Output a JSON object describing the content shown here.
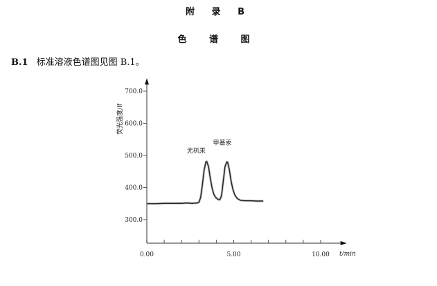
{
  "appendix_title": "附 录 B",
  "section_title": "色 谱 图",
  "paragraph": {
    "number": "B.1",
    "text": "标准溶液色谱图见图 B.1。"
  },
  "chart_data": {
    "type": "line",
    "xlabel": "t/min",
    "ylabel": "荧光强度/lf",
    "xlim": [
      0,
      11.5
    ],
    "ylim": [
      227,
      740
    ],
    "x_ticks": [
      0,
      1,
      2,
      3,
      4,
      5,
      6,
      7,
      8,
      9,
      10
    ],
    "x_tick_labels": [
      "0.00",
      "",
      "",
      "",
      "",
      "5.00",
      "",
      "",
      "",
      "",
      "10.00"
    ],
    "y_ticks": [
      300,
      400,
      500,
      600,
      700
    ],
    "y_tick_labels": [
      "300.0",
      "400.0",
      "500.0",
      "600.0",
      "700.0"
    ],
    "grid": false,
    "line_color": "#222222",
    "annotations": [
      {
        "text": "无机汞",
        "x": 3.4,
        "y": 500
      },
      {
        "text": "甲基汞",
        "x": 4.9,
        "y": 525
      }
    ],
    "series": [
      {
        "x": [
          0,
          0.5,
          1,
          1.5,
          2,
          2.3,
          2.6,
          2.9,
          3.0,
          3.1,
          3.2,
          3.3,
          3.4,
          3.45,
          3.55,
          3.65,
          3.75,
          3.85,
          3.95,
          4.1,
          4.2,
          4.3,
          4.4,
          4.5,
          4.6,
          4.65,
          4.75,
          4.85,
          4.95,
          5.05,
          5.2,
          5.4,
          5.7,
          6.0,
          6.3,
          6.7
        ],
        "y": [
          350,
          350,
          351,
          351,
          351,
          352,
          351,
          352,
          354,
          370,
          410,
          455,
          480,
          481,
          465,
          430,
          400,
          380,
          370,
          363,
          362,
          375,
          420,
          465,
          480,
          479,
          455,
          420,
          395,
          378,
          366,
          360,
          359,
          359,
          358,
          358
        ]
      }
    ]
  }
}
